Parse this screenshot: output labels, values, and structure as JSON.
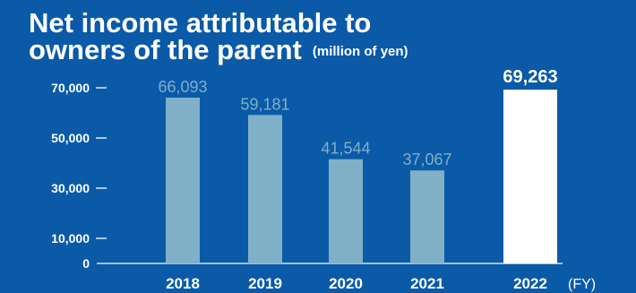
{
  "title": {
    "line1": "Net income attributable to",
    "line2": "owners of the parent",
    "unit": "(million of yen)"
  },
  "colors": {
    "background": "#0a5aa8",
    "bar": "#7fb0c8",
    "highlight_bar": "#ffffff",
    "value_label": "#7fb0c8",
    "highlight_value_label": "#ffffff",
    "axis": "#ffffff"
  },
  "chart_data": {
    "type": "bar",
    "title": "Net income attributable to owners of the parent",
    "unit": "(million of yen)",
    "categories": [
      "2018",
      "2019",
      "2020",
      "2021",
      "2022"
    ],
    "values": [
      66093,
      59181,
      41544,
      37067,
      69263
    ],
    "value_labels": [
      "66,093",
      "59,181",
      "41,544",
      "37,067",
      "69,263"
    ],
    "highlight_index": 4,
    "xlabel": "(FY)",
    "ylabel": "",
    "y_ticks": [
      0,
      10000,
      30000,
      50000,
      70000
    ],
    "y_tick_labels": [
      "0",
      "10,000",
      "30,000",
      "50,000",
      "70,000"
    ],
    "ylim": [
      0,
      70000
    ],
    "grid": false,
    "legend": "none"
  }
}
